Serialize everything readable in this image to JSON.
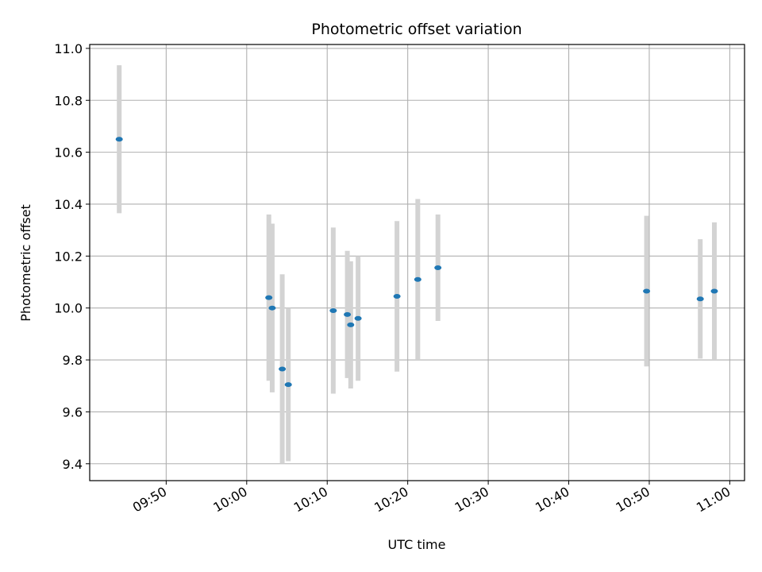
{
  "chart_data": {
    "type": "scatter",
    "title": "Photometric offset variation",
    "xlabel": "UTC time",
    "ylabel": "Photometric offset",
    "x_ticks": [
      "09:50",
      "10:00",
      "10:10",
      "10:20",
      "10:30",
      "10:40",
      "10:50",
      "11:00"
    ],
    "y_ticks": [
      "9.4",
      "9.6",
      "9.8",
      "10.0",
      "10.2",
      "10.4",
      "10.6",
      "10.8",
      "11.0"
    ],
    "y_tick_values": [
      9.4,
      9.6,
      9.8,
      10.0,
      10.2,
      10.4,
      10.6,
      10.8,
      11.0
    ],
    "xlim": [
      "09:40:30",
      "11:01:50"
    ],
    "ylim": [
      9.335,
      11.015
    ],
    "grid": true,
    "marker_color": "#1f77b4",
    "errorbar_color": "#d3d3d3",
    "points": [
      {
        "t": "09:44:10",
        "y": 10.65,
        "err": 0.285
      },
      {
        "t": "10:02:45",
        "y": 10.04,
        "err": 0.32
      },
      {
        "t": "10:03:10",
        "y": 10.0,
        "err": 0.325
      },
      {
        "t": "10:04:25",
        "y": 9.765,
        "err": 0.365
      },
      {
        "t": "10:05:10",
        "y": 9.705,
        "err": 0.295
      },
      {
        "t": "10:10:45",
        "y": 9.99,
        "err": 0.32
      },
      {
        "t": "10:12:30",
        "y": 9.975,
        "err": 0.245
      },
      {
        "t": "10:12:55",
        "y": 9.935,
        "err": 0.245
      },
      {
        "t": "10:13:50",
        "y": 9.96,
        "err": 0.24
      },
      {
        "t": "10:18:40",
        "y": 10.045,
        "err": 0.29
      },
      {
        "t": "10:21:15",
        "y": 10.11,
        "err": 0.31
      },
      {
        "t": "10:23:45",
        "y": 10.155,
        "err": 0.205
      },
      {
        "t": "10:49:40",
        "y": 10.065,
        "err": 0.29
      },
      {
        "t": "10:56:20",
        "y": 10.035,
        "err": 0.23
      },
      {
        "t": "10:58:05",
        "y": 10.065,
        "err": 0.265
      }
    ]
  }
}
